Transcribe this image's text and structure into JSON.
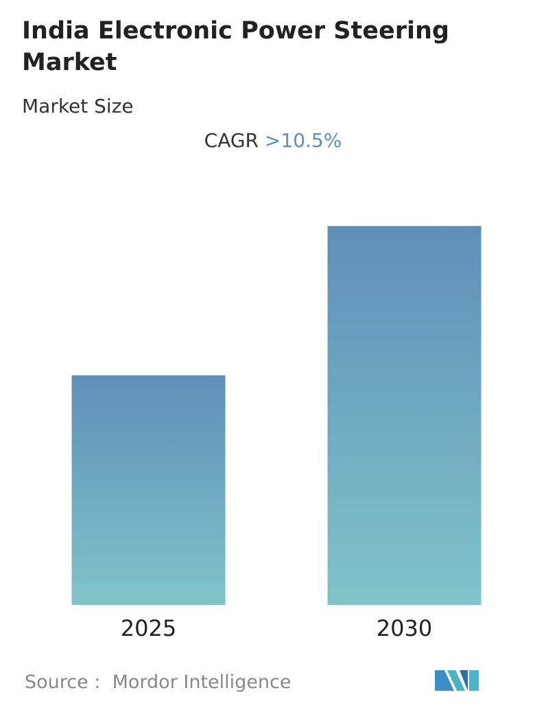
{
  "chart_data": {
    "type": "bar",
    "title": "India Electronic Power Steering Market",
    "subtitle": "Market Size",
    "cagr_label": "CAGR",
    "cagr_value": ">10.5%",
    "categories": [
      "2025",
      "2030"
    ],
    "values": [
      100,
      165
    ],
    "ylim": [
      0,
      180
    ],
    "gradient": [
      "#5f8fb8",
      "#80c4c9"
    ],
    "source_label": "Source :",
    "source": "Mordor Intelligence"
  }
}
